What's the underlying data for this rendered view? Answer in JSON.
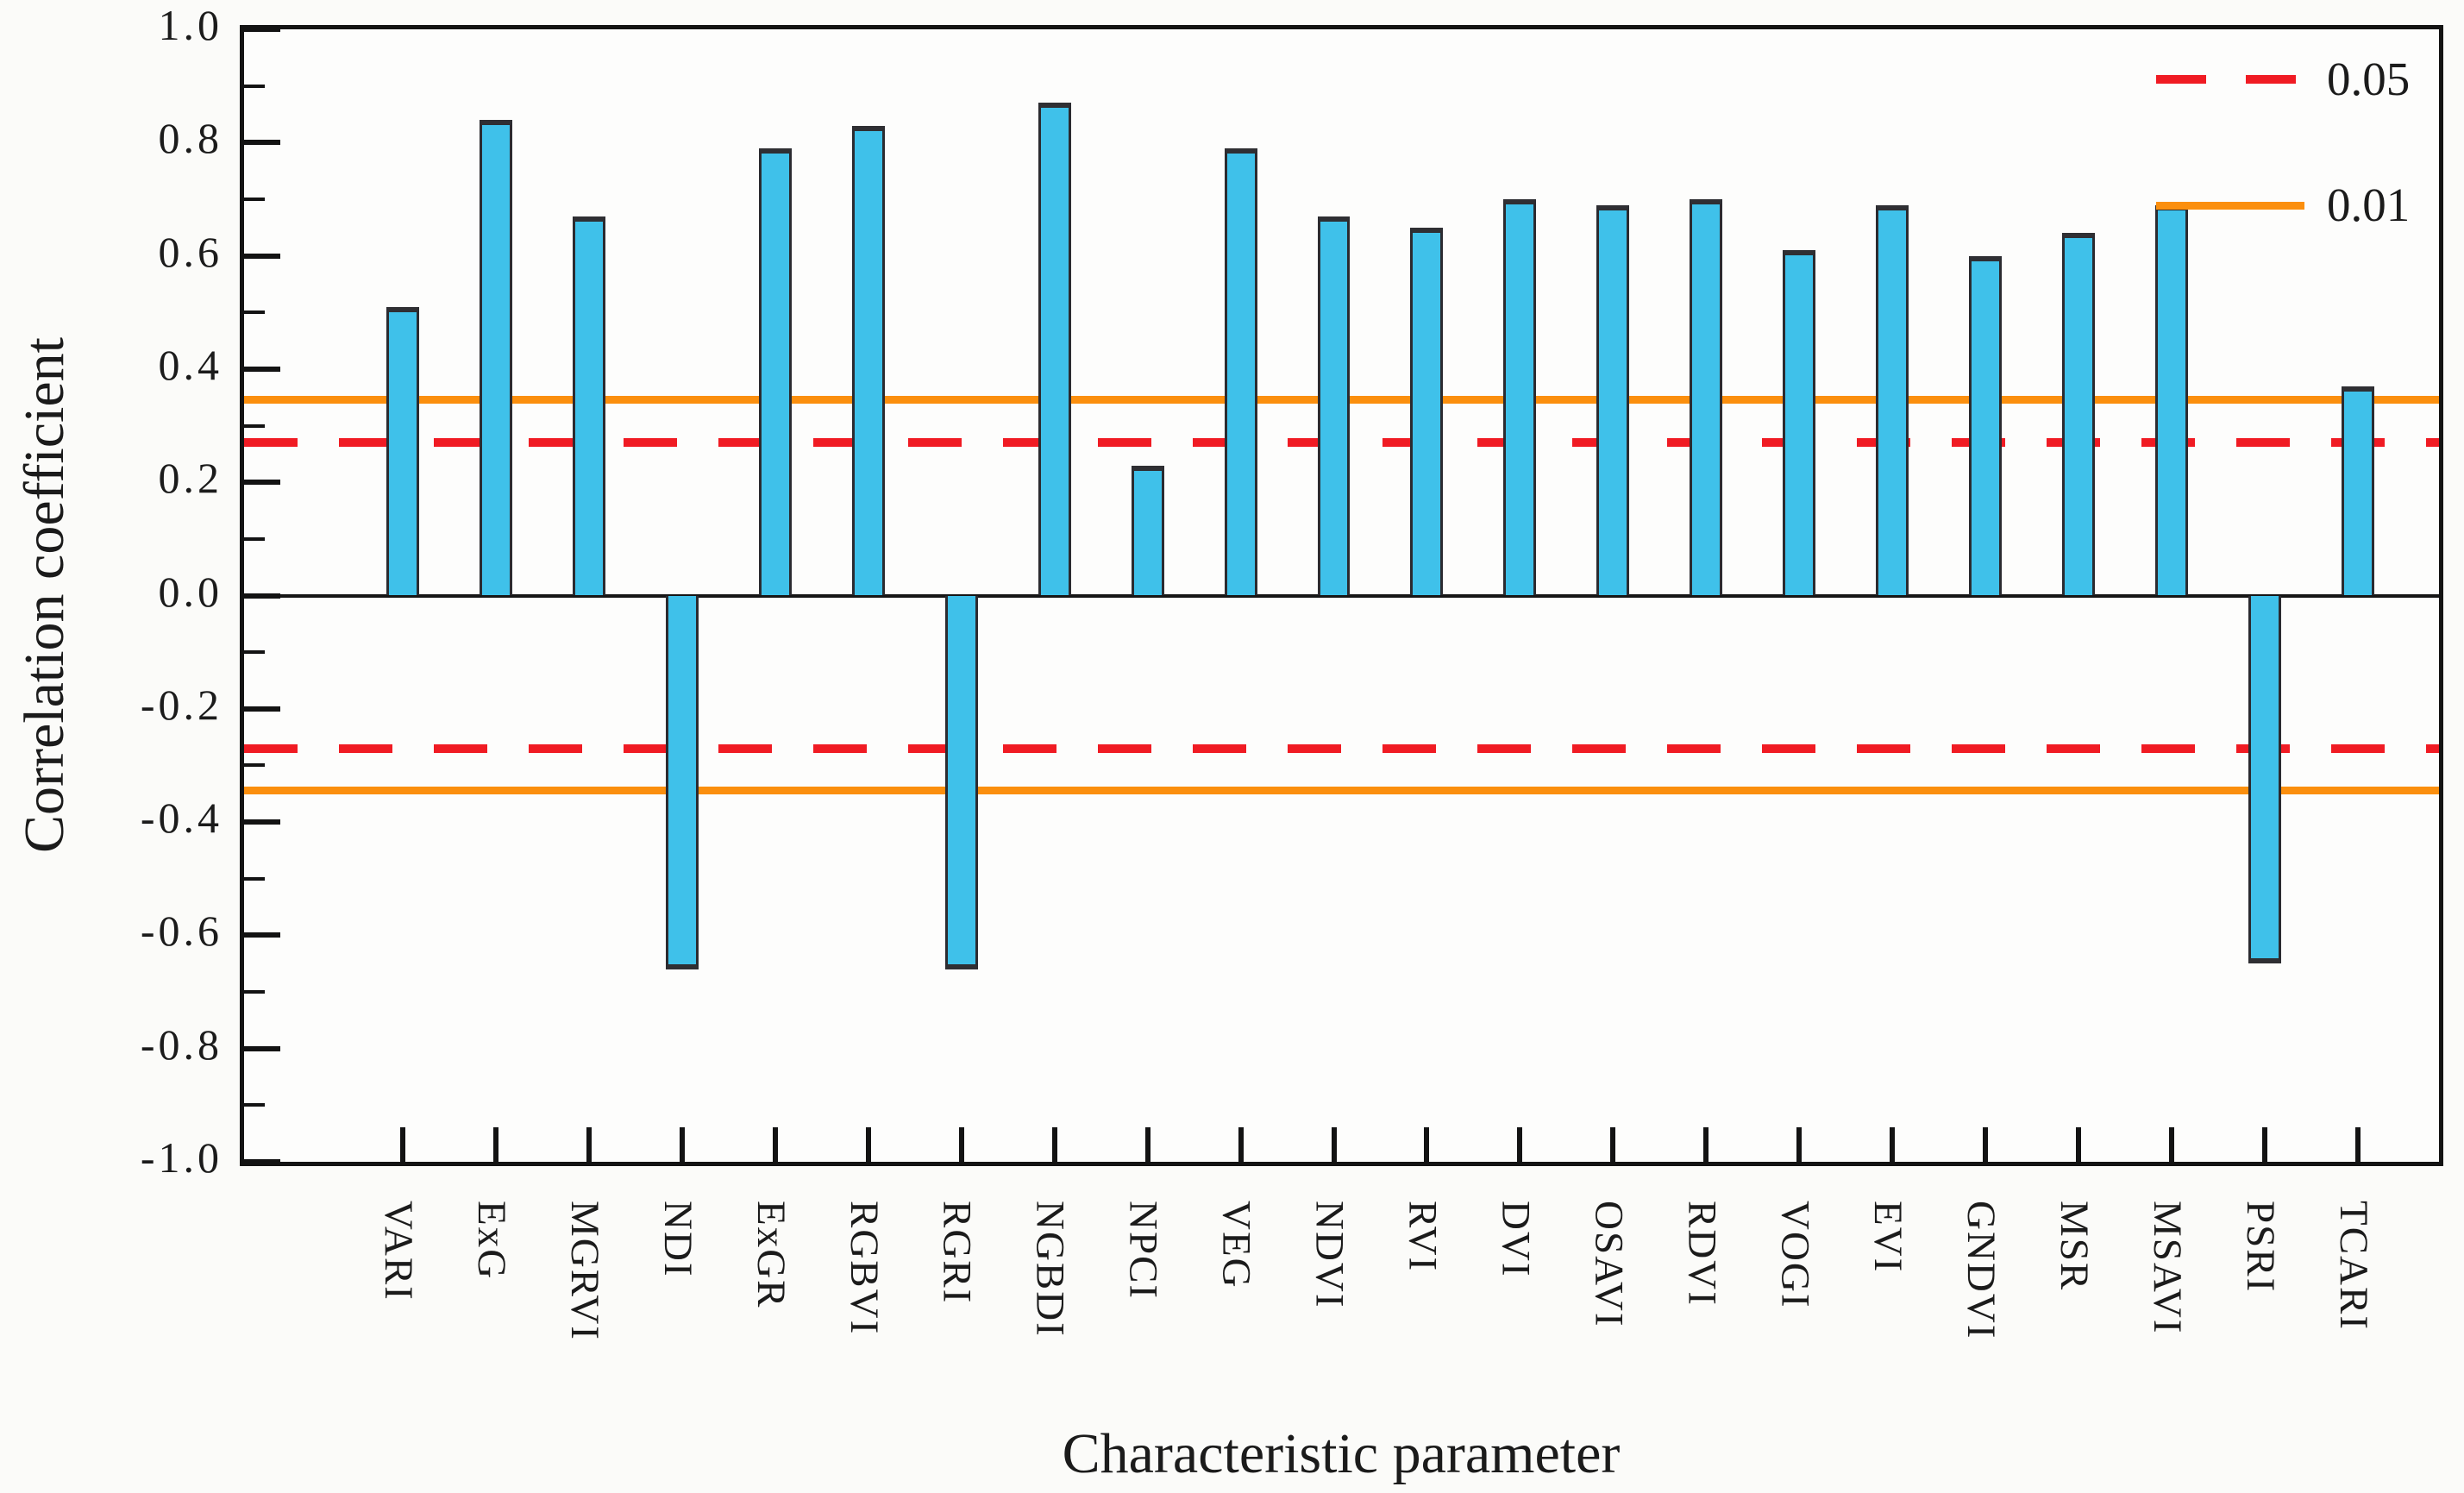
{
  "chart_data": {
    "type": "bar",
    "title": "",
    "xlabel": "Characteristic parameter",
    "ylabel": "Correlation coefficient",
    "ylim": [
      -1.0,
      1.0
    ],
    "grid": false,
    "y_tick_labels": [
      "1.0",
      "0.8",
      "0.6",
      "0.4",
      "0.2",
      "0.0",
      "-0.2",
      "-0.4",
      "-0.6",
      "-0.8",
      "-1.0"
    ],
    "y_major_tick_step": 0.2,
    "y_minor_tick_step": 0.1,
    "categories": [
      "VARI",
      "ExG",
      "MGRVI",
      "NDI",
      "ExGR",
      "RGBVI",
      "RGRI",
      "NGBDI",
      "NPCI",
      "VEG",
      "NDVI",
      "RVI",
      "DVI",
      "OSAVI",
      "RDVI",
      "VOGI",
      "EVI",
      "GNDVI",
      "MSR",
      "MSAVI",
      "PSRI",
      "TCARI"
    ],
    "values": [
      0.51,
      0.84,
      0.67,
      -0.66,
      0.79,
      0.83,
      -0.66,
      0.87,
      0.23,
      0.79,
      0.67,
      0.65,
      0.7,
      0.69,
      0.7,
      0.61,
      0.69,
      0.6,
      0.64,
      0.69,
      -0.65,
      0.37
    ],
    "bar_color": "#3fc1ea",
    "bar_edge_color": "#2b2b30",
    "zero_line_color": "#161616",
    "reference_lines": [
      {
        "label": "0.05",
        "value": 0.27,
        "mirrored": true,
        "style": "dashed",
        "color": "#f01b23"
      },
      {
        "label": "0.01",
        "value": 0.345,
        "mirrored": true,
        "style": "solid",
        "color": "#fb8f0e"
      }
    ],
    "legend_position": "top-right"
  }
}
